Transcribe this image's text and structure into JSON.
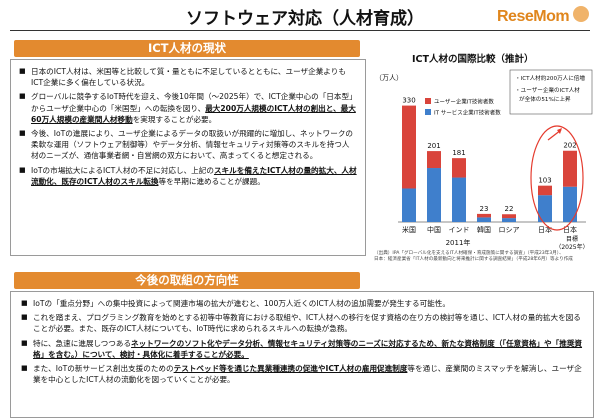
{
  "header": {
    "title": "ソフトウェア対応（人材育成）",
    "logo_text": "ReseMom"
  },
  "section1": {
    "heading": "ICT人材の現状",
    "bullets": [
      {
        "segments": [
          {
            "t": "日本のICT人材は、米国等と比較して質・量ともに不足しているとともに、ユーザ企業よりもICT企業に多く偏在している状況。",
            "s": ""
          }
        ]
      },
      {
        "segments": [
          {
            "t": "グローバルに競争するIoT時代を迎え、今後10年間（～2025年）で、ICT企業中心の「日本型」からユーザ企業中心の「米国型」への転換を図り、",
            "s": ""
          },
          {
            "t": "最大200万人規模のICT人材の創出と、最大60万人規模の産業間人材移動",
            "s": "hl u"
          },
          {
            "t": "を実現することが必要。",
            "s": ""
          }
        ]
      },
      {
        "segments": [
          {
            "t": "今後、IoTの進展により、ユーザ企業によるデータの取扱いが飛躍的に増加し、ネットワークの柔軟な運用（ソフトウェア制御等）やデータ分析、情報セキュリティ対策等のスキルを持つ人材のニーズが、通信事業者網・自営網の双方において、高まってくると想定される。",
            "s": ""
          }
        ]
      },
      {
        "segments": [
          {
            "t": "IoTの市場拡大によるICT人材の不足に対応し、上記の",
            "s": ""
          },
          {
            "t": "スキルを備えたICT人材の量的拡大、人材流動化、既存のICT人材のスキル転換",
            "s": "hl u"
          },
          {
            "t": "等を早期に進めることが課題。",
            "s": ""
          }
        ]
      }
    ]
  },
  "section2": {
    "heading": "今後の取組の方向性",
    "bullets": [
      {
        "segments": [
          {
            "t": "IoTの「重点分野」への集中投資によって関連市場の拡大が進むと、100万人近くのICT人材の追加需要が発生する可能性。",
            "s": ""
          }
        ]
      },
      {
        "segments": [
          {
            "t": "これを踏まえ、プログラミング教育を始めとする初等中等教育における取組や、ICT人材への移行を促す資格の在り方の検討等を通じ、ICT人材の量的拡大を図ることが必要。また、既存のICT人材についても、IoT時代に求められるスキルへの転換が急務。",
            "s": ""
          }
        ]
      },
      {
        "segments": [
          {
            "t": "特に、急速に進展しつつある",
            "s": ""
          },
          {
            "t": "ネットワークのソフト化やデータ分析、情報セキュリティ対策等のニーズに対応するため、新たな資格制度（「任意資格」や「推奨資格」を含む。）について、検討・具体化に着手することが必要。",
            "s": "hl u"
          }
        ]
      },
      {
        "segments": [
          {
            "t": "また、IoTの新サービス創出支援のための",
            "s": ""
          },
          {
            "t": "テストベッド等を通じた異業種連携の促進やICT人材の雇用促進制度",
            "s": "hl u"
          },
          {
            "t": "等を通じ、産業間のミスマッチを解消し、ユーザ企業を中心としたICT人材の流動化を図っていくことが必要。",
            "s": ""
          }
        ]
      }
    ]
  },
  "chart_data": {
    "type": "bar",
    "title": "ICT人材の国際比較（推計）",
    "unit_label": "（万人）",
    "categories": [
      "米国",
      "中国",
      "インド",
      "韓国",
      "ロシア",
      "日本",
      "日本"
    ],
    "series": [
      {
        "name": "ユーザー企業IT技術者数",
        "color": "#d9443b",
        "values": [
          235,
          48,
          55,
          10,
          11,
          27,
          102
        ]
      },
      {
        "name": "IT サービス企業IT技術者数",
        "color": "#3f7fcc",
        "values": [
          95,
          153,
          126,
          13,
          11,
          76,
          100
        ]
      }
    ],
    "totals": [
      330,
      201,
      181,
      23,
      22,
      103,
      202
    ],
    "x_group_label": "2011年",
    "target_label": "目標（2025年）",
    "callout": {
      "lines": [
        "ICT人材約200万人に倍増",
        "ユーザー企業のICT人材が全体の51%に上昇"
      ]
    },
    "ylim": [
      0,
      360
    ],
    "source_text": "（出典）IPA「グローバル化を支えるIT人材確保・育成施策に関する調査」（平成23年3月）、\n日本：経済産業省「IT人材の最新動向と将来推計に関する調査結果」（平成28年6月）等より作成"
  }
}
